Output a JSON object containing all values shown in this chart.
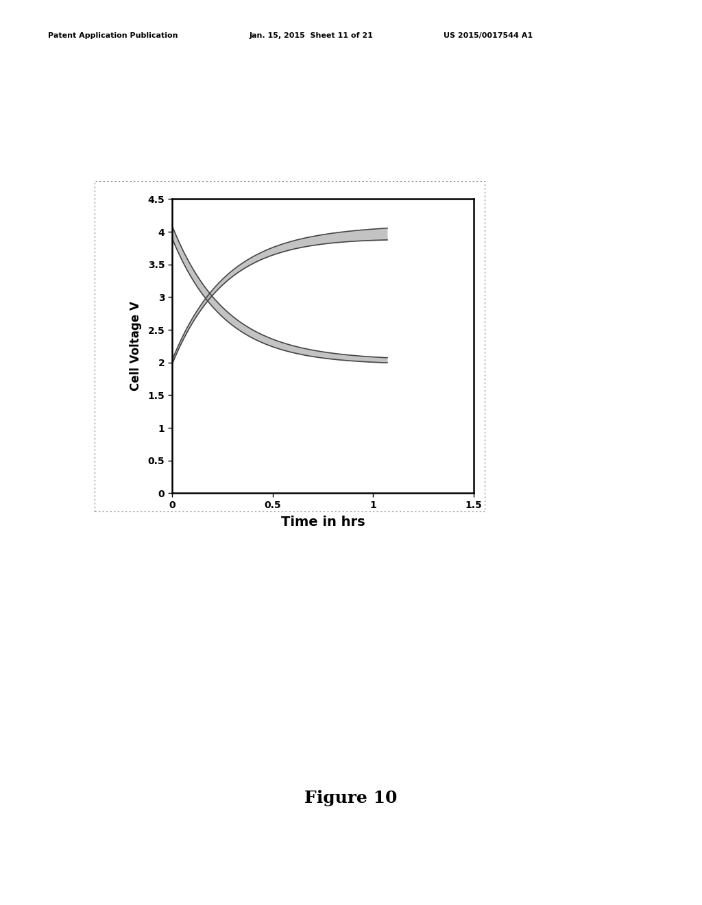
{
  "title": "",
  "xlabel": "Time in hrs",
  "ylabel": "Cell Voltage V",
  "xlim": [
    0,
    1.5
  ],
  "ylim": [
    0,
    4.5
  ],
  "xticks": [
    0,
    0.5,
    1.0,
    1.5
  ],
  "yticks": [
    0,
    0.5,
    1.0,
    1.5,
    2.0,
    2.5,
    3.0,
    3.5,
    4.0,
    4.5
  ],
  "figure_caption": "Figure 10",
  "header_left": "Patent Application Publication",
  "header_center": "Jan. 15, 2015  Sheet 11 of 21",
  "header_right": "US 2015/0017544 A1",
  "background_color": "#ffffff",
  "plot_background": "#ffffff",
  "band_color": "#aaaaaa",
  "line_color": "#444444",
  "line_width": 1.2,
  "band_alpha": 0.7,
  "t_max": 1.07,
  "n_points": 500
}
